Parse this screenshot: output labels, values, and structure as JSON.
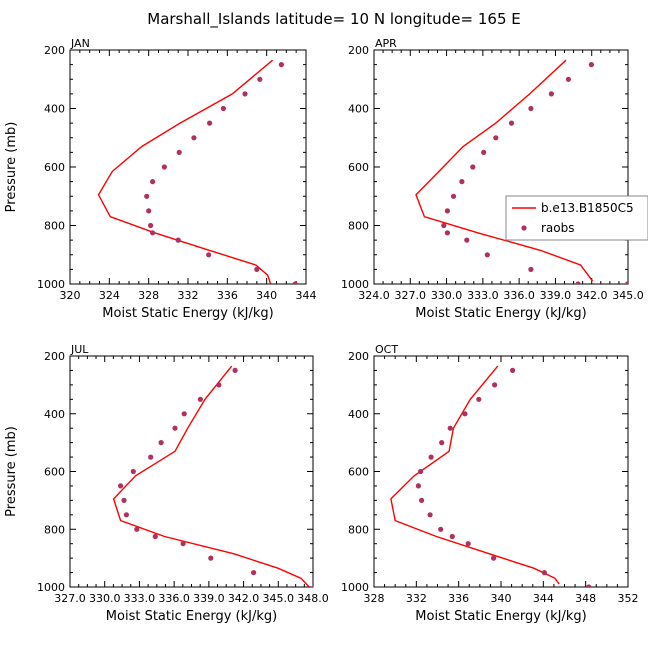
{
  "title": "Marshall_Islands   latitude=  10 N longitude=  165 E",
  "colors": {
    "model": "#ff0000",
    "obs": "#b03060"
  },
  "chart_data": [
    {
      "type": "line",
      "panel": "JAN",
      "xlabel": "Moist Static Energy (kJ/kg)",
      "ylabel": "Pressure (mb)",
      "xlim": [
        320,
        344
      ],
      "ylim": [
        1000,
        200
      ],
      "xticks": [
        320,
        324,
        328,
        332,
        336,
        340,
        344
      ],
      "xtick_labels": [
        "320",
        "324",
        "328",
        "332",
        "336",
        "340",
        "344"
      ],
      "yticks": [
        200,
        400,
        600,
        800,
        1000
      ],
      "ytick_labels": [
        "200",
        "400",
        "600",
        "800",
        "1000"
      ],
      "series": [
        {
          "kind": "line",
          "x": [
            340.6,
            336.5,
            331.2,
            327.3,
            324.3,
            322.9,
            324.1,
            328.6,
            334.2,
            338.9,
            340.1,
            340.4
          ],
          "y": [
            235,
            350,
            450,
            530,
            615,
            695,
            770,
            825,
            885,
            935,
            970,
            1000
          ]
        },
        {
          "kind": "points",
          "name": "raobs",
          "x": [
            341.5,
            339.3,
            337.8,
            335.6,
            334.2,
            332.6,
            331.1,
            329.6,
            328.4,
            327.8,
            328.0,
            328.2,
            328.4,
            331.0,
            334.1,
            339.0,
            342.9
          ],
          "y": [
            250,
            300,
            350,
            400,
            450,
            500,
            550,
            600,
            650,
            700,
            750,
            800,
            825,
            850,
            900,
            950,
            1000
          ]
        }
      ]
    },
    {
      "type": "line",
      "panel": "APR",
      "xlabel": "Moist Static Energy (kJ/kg)",
      "ylabel": "",
      "xlim": [
        324.03,
        345.03
      ],
      "ylim": [
        1000,
        200
      ],
      "xticks": [
        324.03,
        327.03,
        330.03,
        333.03,
        336.03,
        339.03,
        342.03,
        345.03
      ],
      "xtick_labels": [
        "324.0",
        "327.0",
        "330.0",
        "333.0",
        "336.0",
        "339.0",
        "342.0",
        "345.0"
      ],
      "yticks": [
        200,
        400,
        600,
        800,
        1000
      ],
      "ytick_labels": [
        "200",
        "400",
        "600",
        "800",
        "1000"
      ],
      "legend": {
        "position": "right",
        "entries": [
          "b.e13.B1850C5",
          "raobs"
        ]
      },
      "series": [
        {
          "kind": "line",
          "name": "b.e13.B1850C5",
          "x": [
            339.9,
            336.9,
            334.1,
            331.4,
            329.4,
            327.5,
            328.2,
            332.6,
            337.8,
            341.1,
            342.1
          ],
          "y": [
            235,
            350,
            450,
            530,
            615,
            695,
            770,
            825,
            885,
            935,
            990
          ]
        },
        {
          "kind": "points",
          "name": "raobs",
          "x": [
            342.0,
            340.1,
            338.7,
            337.0,
            335.4,
            334.1,
            333.1,
            332.2,
            331.3,
            330.6,
            330.1,
            329.8,
            330.1,
            331.7,
            333.4,
            337.0,
            340.9,
            345.0
          ],
          "y": [
            250,
            300,
            350,
            400,
            450,
            500,
            550,
            600,
            650,
            700,
            750,
            800,
            825,
            850,
            900,
            950,
            1000,
            1000
          ]
        }
      ]
    },
    {
      "type": "line",
      "panel": "JUL",
      "xlabel": "Moist Static Energy (kJ/kg)",
      "ylabel": "Pressure (mb)",
      "xlim": [
        327.03,
        348.03
      ],
      "ylim": [
        1000,
        200
      ],
      "xticks": [
        327.03,
        330.03,
        333.03,
        336.03,
        339.03,
        342.03,
        345.03,
        348.03
      ],
      "xtick_labels": [
        "327.0",
        "330.0",
        "333.0",
        "336.0",
        "339.0",
        "342.0",
        "345.0",
        "348.0"
      ],
      "yticks": [
        200,
        400,
        600,
        800,
        1000
      ],
      "ytick_labels": [
        "200",
        "400",
        "600",
        "800",
        "1000"
      ],
      "series": [
        {
          "kind": "line",
          "x": [
            341.0,
            338.7,
            337.2,
            336.1,
            332.7,
            330.8,
            331.4,
            335.2,
            341.2,
            345.0,
            347.0,
            347.7
          ],
          "y": [
            235,
            350,
            450,
            530,
            615,
            695,
            770,
            825,
            885,
            935,
            970,
            1000
          ]
        },
        {
          "kind": "points",
          "name": "raobs",
          "x": [
            341.3,
            339.9,
            338.3,
            336.9,
            336.1,
            334.9,
            334.0,
            332.5,
            331.4,
            331.7,
            331.9,
            332.8,
            334.4,
            336.8,
            339.2,
            342.9,
            348.2
          ],
          "y": [
            250,
            300,
            350,
            400,
            450,
            500,
            550,
            600,
            650,
            700,
            750,
            800,
            825,
            850,
            900,
            950,
            1000
          ]
        }
      ]
    },
    {
      "type": "line",
      "panel": "OCT",
      "xlabel": "Moist Static Energy (kJ/kg)",
      "ylabel": "",
      "xlim": [
        328,
        352
      ],
      "ylim": [
        1000,
        200
      ],
      "xticks": [
        328,
        332,
        336,
        340,
        344,
        348,
        352
      ],
      "xtick_labels": [
        "328",
        "332",
        "336",
        "340",
        "344",
        "348",
        "352"
      ],
      "yticks": [
        200,
        400,
        600,
        800,
        1000
      ],
      "ytick_labels": [
        "200",
        "400",
        "600",
        "800",
        "1000"
      ],
      "series": [
        {
          "kind": "line",
          "x": [
            339.7,
            337.1,
            335.5,
            335.1,
            331.8,
            329.6,
            330.0,
            333.9,
            338.9,
            343.1,
            345.1,
            345.5
          ],
          "y": [
            235,
            350,
            450,
            530,
            615,
            695,
            770,
            825,
            885,
            935,
            970,
            990
          ]
        },
        {
          "kind": "points",
          "name": "raobs",
          "x": [
            341.1,
            339.4,
            337.9,
            336.6,
            335.2,
            334.4,
            333.4,
            332.4,
            332.2,
            332.5,
            333.3,
            334.3,
            335.4,
            336.9,
            339.3,
            344.1,
            348.3
          ],
          "y": [
            250,
            300,
            350,
            400,
            450,
            500,
            550,
            600,
            650,
            700,
            750,
            800,
            825,
            850,
            900,
            950,
            1000
          ]
        }
      ]
    }
  ]
}
